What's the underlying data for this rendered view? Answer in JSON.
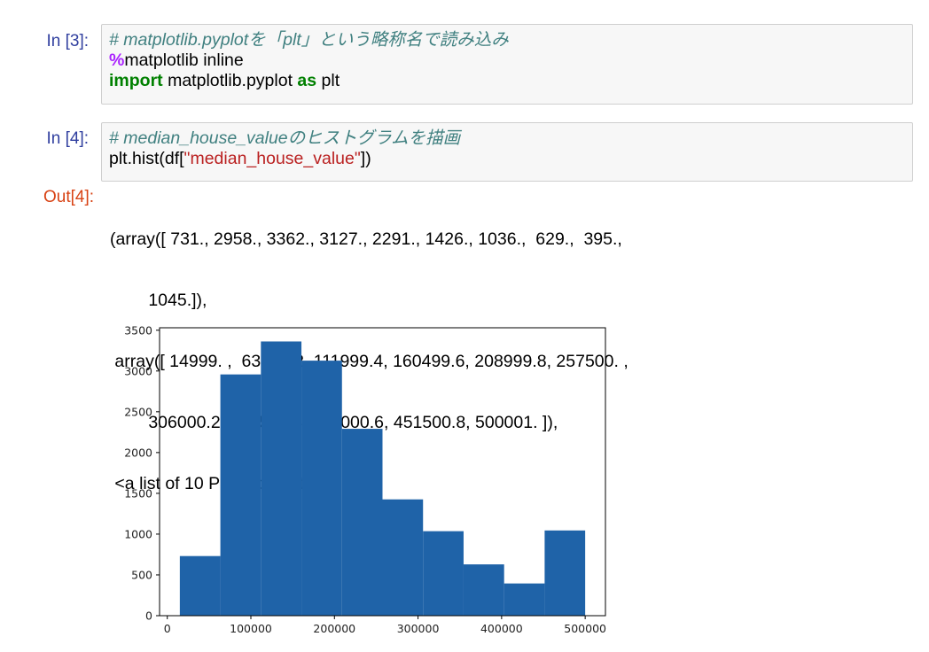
{
  "cells": [
    {
      "prompt": "In [3]:",
      "comment": "# matplotlib.pyplotを「plt」という略称名で読み込み",
      "magic_symbol": "%",
      "magic_rest": "matplotlib inline",
      "import_kw": "import",
      "import_module": " matplotlib.pyplot ",
      "as_kw": "as",
      "import_alias": " plt"
    },
    {
      "prompt": "In [4]:",
      "comment": "# median_house_valueのヒストグラムを描画",
      "call_start": "plt.hist(df[",
      "call_string": "\"median_house_value\"",
      "call_end": "])"
    }
  ],
  "output": {
    "prompt": "Out[4]:",
    "lines": [
      "(array([ 731., 2958., 3362., 3127., 2291., 1426., 1036.,  629.,  395.,",
      "        1045.]),",
      " array([ 14999. ,  63499.2, 111999.4, 160499.6, 208999.8, 257500. ,",
      "        306000.2, 354500.4, 403000.6, 451500.8, 500001. ]),",
      " <a list of 10 Patch objects>)"
    ]
  },
  "chart_data": {
    "type": "bar",
    "bin_edges": [
      14999,
      63499.2,
      111999.4,
      160499.6,
      208999.8,
      257500,
      306000.2,
      354500.4,
      403000.6,
      451500.8,
      500001
    ],
    "values": [
      731,
      2958,
      3362,
      3127,
      2291,
      1426,
      1036,
      629,
      395,
      1045
    ],
    "xlim": [
      -9251,
      524251
    ],
    "ylim": [
      0,
      3530
    ],
    "xticks": [
      0,
      100000,
      200000,
      300000,
      400000,
      500000
    ],
    "xtick_labels": [
      "0",
      "100000",
      "200000",
      "300000",
      "400000",
      "500000"
    ],
    "yticks": [
      0,
      500,
      1000,
      1500,
      2000,
      2500,
      3000,
      3500
    ],
    "ytick_labels": [
      "0",
      "500",
      "1000",
      "1500",
      "2000",
      "2500",
      "3000",
      "3500"
    ],
    "bar_color": "#1f63a8",
    "grid": false
  }
}
